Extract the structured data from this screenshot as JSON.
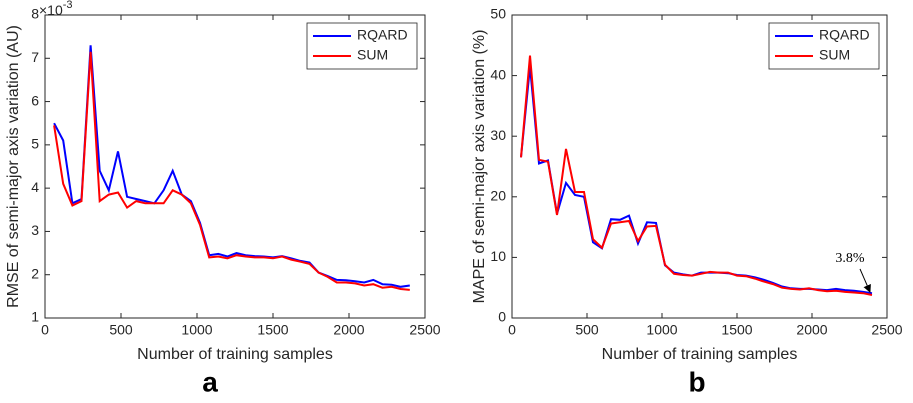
{
  "chart_data": [
    {
      "type": "line",
      "panel_label": "a",
      "x_label": "Number of training samples",
      "y_label": "RMSE of semi-major axis variation (AU)",
      "y_scale_base": "×10",
      "y_scale_exponent": "-3",
      "x": [
        60,
        120,
        180,
        240,
        300,
        360,
        420,
        480,
        540,
        600,
        660,
        720,
        780,
        840,
        900,
        960,
        1020,
        1080,
        1140,
        1200,
        1260,
        1320,
        1380,
        1440,
        1500,
        1560,
        1620,
        1680,
        1740,
        1800,
        1860,
        1920,
        1980,
        2040,
        2100,
        2160,
        2220,
        2280,
        2340,
        2400
      ],
      "series": [
        {
          "name": "RQARD",
          "color": "#0000ff",
          "values": [
            5.5,
            5.1,
            3.65,
            3.75,
            7.3,
            4.4,
            3.95,
            4.85,
            3.8,
            3.75,
            3.7,
            3.65,
            3.95,
            4.4,
            3.85,
            3.7,
            3.2,
            2.45,
            2.48,
            2.42,
            2.5,
            2.45,
            2.43,
            2.42,
            2.4,
            2.43,
            2.38,
            2.32,
            2.28,
            2.05,
            1.97,
            1.88,
            1.87,
            1.85,
            1.82,
            1.88,
            1.78,
            1.77,
            1.72,
            1.75
          ]
        },
        {
          "name": "SUM",
          "color": "#ff0000",
          "values": [
            5.45,
            4.1,
            3.6,
            3.7,
            7.15,
            3.7,
            3.85,
            3.9,
            3.55,
            3.7,
            3.65,
            3.65,
            3.65,
            3.95,
            3.85,
            3.65,
            3.15,
            2.4,
            2.42,
            2.38,
            2.45,
            2.42,
            2.4,
            2.4,
            2.38,
            2.42,
            2.35,
            2.3,
            2.25,
            2.05,
            1.95,
            1.82,
            1.82,
            1.8,
            1.75,
            1.78,
            1.7,
            1.72,
            1.67,
            1.65
          ]
        }
      ],
      "xlim": [
        0,
        2500
      ],
      "xticks": [
        0,
        500,
        1000,
        1500,
        2000,
        2500
      ],
      "ylim": [
        1,
        8
      ],
      "yticks": [
        1,
        2,
        3,
        4,
        5,
        6,
        7,
        8
      ],
      "legend": "northeast",
      "grid": false
    },
    {
      "type": "line",
      "panel_label": "b",
      "x_label": "Number of training samples",
      "y_label": "MAPE of semi-major axis variation (%)",
      "x": [
        60,
        120,
        180,
        240,
        300,
        360,
        420,
        480,
        540,
        600,
        660,
        720,
        780,
        840,
        900,
        960,
        1020,
        1080,
        1140,
        1200,
        1260,
        1320,
        1380,
        1440,
        1500,
        1560,
        1620,
        1680,
        1740,
        1800,
        1860,
        1920,
        1980,
        2040,
        2100,
        2160,
        2220,
        2280,
        2340,
        2400
      ],
      "series": [
        {
          "name": "RQARD",
          "color": "#0000ff",
          "values": [
            26.5,
            41.5,
            25.5,
            26,
            17.2,
            22.3,
            20.3,
            20,
            12.5,
            11.5,
            16.3,
            16.2,
            16.9,
            12.3,
            15.8,
            15.7,
            8.7,
            7.5,
            7.2,
            7.0,
            7.5,
            7.5,
            7.5,
            7.4,
            7.1,
            7.0,
            6.7,
            6.3,
            5.8,
            5.2,
            4.9,
            4.8,
            4.8,
            4.7,
            4.6,
            4.8,
            4.6,
            4.5,
            4.3,
            4.1
          ]
        },
        {
          "name": "SUM",
          "color": "#ff0000",
          "values": [
            26.5,
            43.3,
            26.1,
            25.8,
            17,
            27.9,
            20.8,
            20.8,
            13,
            11.6,
            15.6,
            15.8,
            16,
            12.7,
            15.1,
            15.2,
            8.8,
            7.3,
            7.1,
            7.0,
            7.3,
            7.6,
            7.5,
            7.5,
            7.0,
            6.9,
            6.5,
            6.0,
            5.6,
            5.0,
            4.8,
            4.7,
            4.9,
            4.6,
            4.4,
            4.5,
            4.3,
            4.2,
            4.1,
            3.8
          ]
        }
      ],
      "annotation": "3.8%",
      "xlim": [
        0,
        2500
      ],
      "xticks": [
        0,
        500,
        1000,
        1500,
        2000,
        2500
      ],
      "ylim": [
        0,
        50
      ],
      "yticks": [
        0,
        10,
        20,
        30,
        40,
        50
      ],
      "legend": "northeast",
      "grid": false
    }
  ]
}
